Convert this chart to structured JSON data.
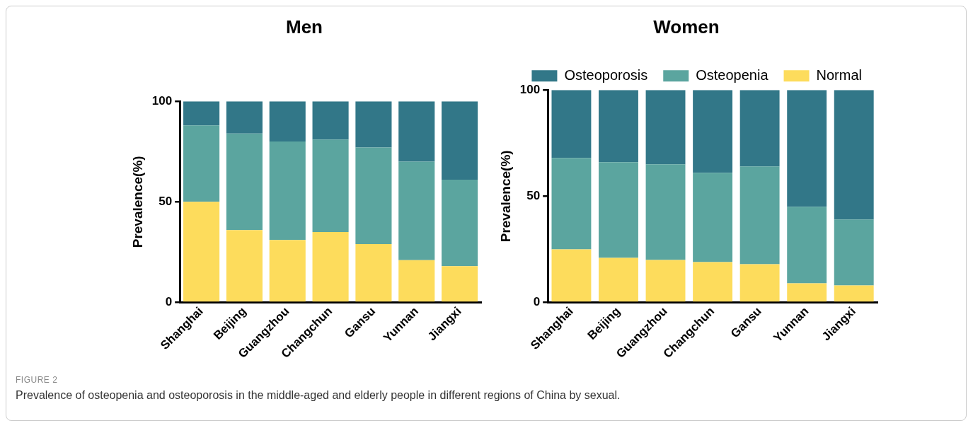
{
  "chart_data": [
    {
      "type": "bar",
      "title": "Men",
      "ylabel": "Prevalence(%)",
      "categories": [
        "Shanghai",
        "Beijing",
        "Guangzhou",
        "Changchun",
        "Gansu",
        "Yunnan",
        "Jiangxi"
      ],
      "stacked": true,
      "ylim": [
        0,
        100
      ],
      "yticks": [
        0,
        50,
        100
      ],
      "legend": false,
      "series": [
        {
          "color": "#fddc5c",
          "values": [
            50,
            36,
            31,
            35,
            29,
            21,
            18
          ]
        },
        {
          "color": "#5ba59f",
          "values": [
            38,
            48,
            49,
            46,
            48,
            49,
            43
          ]
        },
        {
          "color": "#327788",
          "values": [
            12,
            16,
            20,
            19,
            23,
            30,
            39
          ]
        }
      ],
      "annotations": [
        "FIGURE 2",
        "Prevalence of osteopenia and osteoporosis in the middle-aged and elderly people in different regions of China by sexual."
      ]
    },
    {
      "type": "bar",
      "title": "Women",
      "ylabel": "Prevalence(%)",
      "categories": [
        "Shanghai",
        "Beijing",
        "Guangzhou",
        "Changchun",
        "Gansu",
        "Yunnan",
        "Jiangxi"
      ],
      "stacked": true,
      "ylim": [
        0,
        100
      ],
      "yticks": [
        0,
        50,
        100
      ],
      "legend": "top",
      "series": [
        {
          "name": "Normal",
          "color": "#fddc5c",
          "values": [
            25,
            21,
            20,
            19,
            18,
            9,
            8
          ]
        },
        {
          "name": "Osteopenia",
          "color": "#5ba59f",
          "values": [
            43,
            45,
            45,
            42,
            46,
            36,
            31
          ]
        },
        {
          "name": "Osteoporosis",
          "color": "#327788",
          "values": [
            32,
            34,
            35,
            39,
            36,
            55,
            61
          ]
        }
      ]
    }
  ]
}
